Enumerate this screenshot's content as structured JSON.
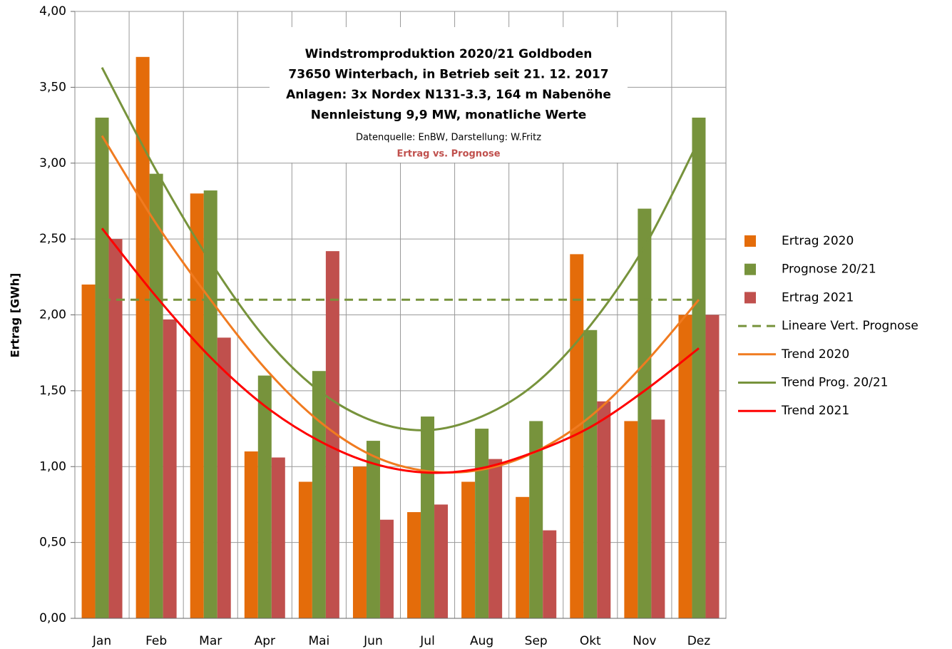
{
  "chart_data": {
    "type": "bar",
    "title": [
      "Windstromproduktion  2020/21 Goldboden",
      "73650 Winterbach, in Betrieb seit 21. 12. 2017",
      "Anlagen: 3x Nordex N131-3.3, 164 m Nabenöhe",
      "Nennleistung 9,9 MW, monatliche Werte"
    ],
    "subtitle": "Datenquelle: EnBW, Darstellung: W.Fritz",
    "annotation": "Ertrag vs. Prognose",
    "y_label": "Ertrag [GWh]",
    "categories": [
      "Jan",
      "Feb",
      "Mar",
      "Apr",
      "Mai",
      "Jun",
      "Jul",
      "Aug",
      "Sep",
      "Okt",
      "Nov",
      "Dez"
    ],
    "ylim": [
      0,
      4
    ],
    "yticks": [
      {
        "value": 0,
        "label": "0,00"
      },
      {
        "value": 0.5,
        "label": "0,50"
      },
      {
        "value": 1,
        "label": "1,00"
      },
      {
        "value": 1.5,
        "label": "1,50"
      },
      {
        "value": 2,
        "label": "2,00"
      },
      {
        "value": 2.5,
        "label": "2,50"
      },
      {
        "value": 3,
        "label": "3,00"
      },
      {
        "value": 3.5,
        "label": "3,50"
      },
      {
        "value": 4,
        "label": "4,00"
      }
    ],
    "grid": true,
    "legend": "right",
    "series": [
      {
        "name": "Ertrag 2020",
        "type": "bar",
        "color": "#e46c0a",
        "values": [
          2.2,
          3.7,
          2.8,
          1.1,
          0.9,
          1.0,
          0.7,
          0.9,
          0.8,
          2.4,
          1.3,
          2.0
        ]
      },
      {
        "name": "Prognose 20/21",
        "type": "bar",
        "color": "#77933c",
        "values": [
          3.3,
          2.93,
          2.82,
          1.6,
          1.63,
          1.17,
          1.33,
          1.25,
          1.3,
          1.9,
          2.7,
          3.3
        ]
      },
      {
        "name": "Ertrag 2021",
        "type": "bar",
        "color": "#c0504d",
        "values": [
          2.5,
          1.97,
          1.85,
          1.06,
          2.42,
          0.65,
          0.75,
          1.05,
          0.58,
          1.43,
          1.31,
          2.0
        ]
      },
      {
        "name": "Lineare Vert. Prognose",
        "type": "line",
        "dashed": true,
        "color": "#77933c",
        "values": [
          2.1,
          2.1,
          2.1,
          2.1,
          2.1,
          2.1,
          2.1,
          2.1,
          2.1,
          2.1,
          2.1,
          2.1
        ]
      },
      {
        "name": "Trend 2020",
        "type": "line",
        "color": "#f07b20",
        "values": [
          3.18,
          2.6,
          2.1,
          1.65,
          1.3,
          1.07,
          0.97,
          0.98,
          1.1,
          1.33,
          1.68,
          2.1
        ]
      },
      {
        "name": "Trend Prog. 20/21",
        "type": "line",
        "color": "#77933c",
        "values": [
          3.63,
          2.95,
          2.35,
          1.85,
          1.5,
          1.3,
          1.24,
          1.33,
          1.55,
          1.93,
          2.45,
          3.15
        ]
      },
      {
        "name": "Trend 2021",
        "type": "line",
        "color": "#ff0000",
        "values": [
          2.57,
          2.12,
          1.72,
          1.4,
          1.17,
          1.02,
          0.96,
          0.99,
          1.1,
          1.26,
          1.5,
          1.78
        ]
      }
    ]
  }
}
